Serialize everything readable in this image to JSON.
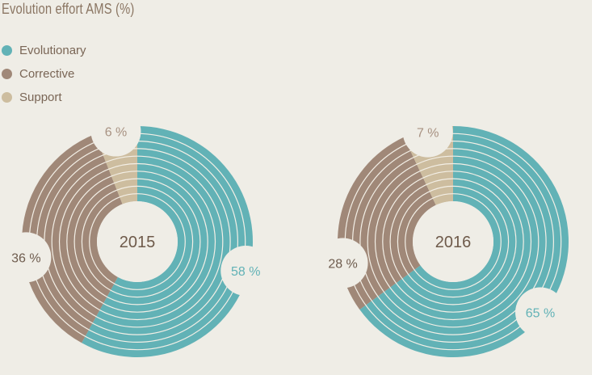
{
  "chart_data": {
    "type": "pie",
    "title": "Evolution effort AMS  (%)",
    "legend_position": "top-left",
    "series": [
      {
        "name": "Evolutionary",
        "color": "#62b2b6"
      },
      {
        "name": "Corrective",
        "color": "#a08878"
      },
      {
        "name": "Support",
        "color": "#cdbd9f"
      }
    ],
    "charts": [
      {
        "label": "2015",
        "values": [
          58,
          36,
          6
        ],
        "value_labels": [
          "58 %",
          "36 %",
          "6 %"
        ]
      },
      {
        "label": "2016",
        "values": [
          65,
          28,
          7
        ],
        "value_labels": [
          "65 %",
          "28 %",
          "7 %"
        ]
      }
    ]
  },
  "colors": {
    "background": "#efede6",
    "title": "#8a7562",
    "year": "#6e5a4a"
  }
}
